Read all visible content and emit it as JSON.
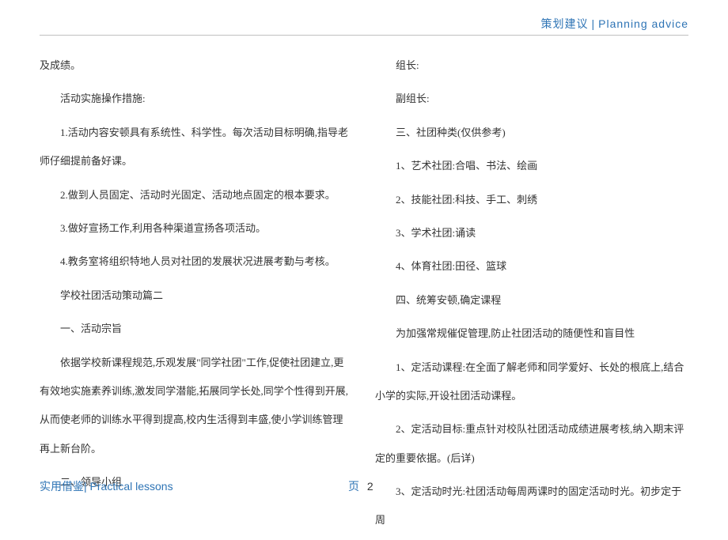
{
  "header": {
    "title_cn": "策划建议",
    "title_en": "Planning  advice"
  },
  "columns": {
    "left": [
      "及成绩。",
      "活动实施操作措施:",
      "1.活动内容安顿具有系统性、科学性。每次活动目标明确,指导老师仔细提前备好课。",
      "2.做到人员固定、活动时光固定、活动地点固定的根本要求。",
      "3.做好宣扬工作,利用各种渠道宣扬各项活动。",
      "4.教务室将组织特地人员对社团的发展状况进展考勤与考核。",
      "学校社团活动策动篇二",
      "一、活动宗旨",
      "依据学校新课程规范,乐观发展\"同学社团\"工作,促使社团建立,更有效地实施素养训练,激发同学潜能,拓展同学长处,同学个性得到开展,从而使老师的训练水平得到提高,校内生活得到丰盛,使小学训练管理再上新台阶。",
      "二、领导小组"
    ],
    "right": [
      "组长:",
      "副组长:",
      "三、社团种类(仅供参考)",
      "1、艺术社团:合唱、书法、绘画",
      "2、技能社团:科技、手工、刺绣",
      "3、学术社团:诵读",
      "4、体育社团:田径、篮球",
      "四、统筹安顿,确定课程",
      "为加强常规催促管理,防止社团活动的随便性和盲目性",
      "1、定活动课程:在全面了解老师和同学爱好、长处的根底上,结合小学的实际,开设社团活动课程。",
      "2、定活动目标:重点针对校队社团活动成绩进展考核,纳入期末评定的重要依据。(后详)",
      "3、定活动时光:社团活动每周两课时的固定活动时光。初步定于周"
    ]
  },
  "footer": {
    "label_cn": "实用借鉴",
    "label_en": "Practical lessons",
    "page_label": "页",
    "page_num": "2"
  },
  "colors": {
    "accent": "#2e74b5",
    "text": "#333333",
    "border": "#c0c0c0",
    "background": "#ffffff"
  },
  "typography": {
    "body_fontsize": 13,
    "header_fontsize": 14,
    "line_height": 2.8
  }
}
